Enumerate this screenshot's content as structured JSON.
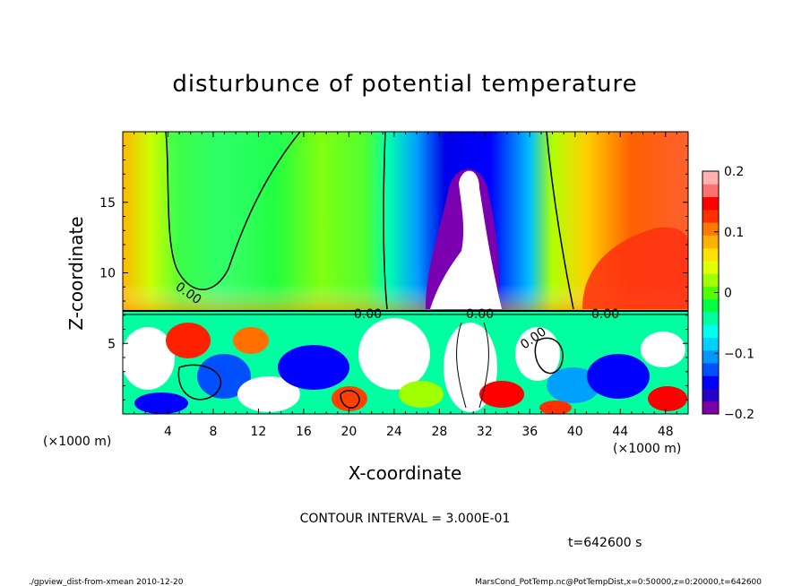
{
  "chart_data": {
    "type": "heatmap",
    "title": "disturbunce of potential temperature",
    "xlabel": "X-coordinate",
    "ylabel": "Z-coordinate",
    "x_unit_label": "(×1000 m)",
    "y_unit_label": "(×1000 m)",
    "x_ticks": [
      "4",
      "8",
      "12",
      "16",
      "20",
      "24",
      "28",
      "32",
      "36",
      "40",
      "44",
      "48"
    ],
    "y_ticks": [
      "5",
      "10",
      "15"
    ],
    "x_range": [
      0,
      50
    ],
    "y_range": [
      0,
      20
    ],
    "colorbar": {
      "range": [
        -0.2,
        0.2
      ],
      "tick_labels": [
        "0.2",
        "0.1",
        "0",
        "−0.1",
        "−0.2"
      ],
      "tick_values": [
        0.2,
        0.1,
        0,
        -0.1,
        -0.2
      ],
      "colors": [
        "#7b00a8",
        "#2a00c8",
        "#0000ff",
        "#0050ff",
        "#0098ff",
        "#00d0ff",
        "#00ffee",
        "#00ffa0",
        "#00ff40",
        "#50ff00",
        "#a0ff00",
        "#e0ff00",
        "#ffe000",
        "#ffb000",
        "#ff7800",
        "#ff3000",
        "#ff0000",
        "#ff7070",
        "#ffb0b0"
      ]
    },
    "contour_label": "0.00",
    "contour_interval": "CONTOUR INTERVAL = 3.000E-01",
    "time": "t=642600 s"
  },
  "footer": {
    "left": "./gpview_dist-from-xmean  2010-12-20",
    "right": "MarsCond_PotTemp.nc@PotTempDist,x=0:50000,z=0:20000,t=642600"
  }
}
